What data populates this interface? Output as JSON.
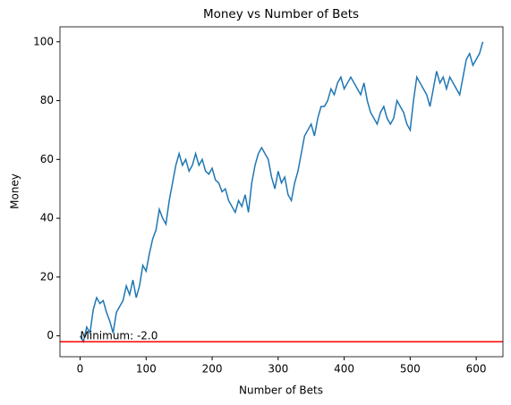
{
  "chart_data": {
    "type": "line",
    "title": "Money vs Number of Bets",
    "x_label": "Number of Bets",
    "y_label": "Money",
    "x": [
      0,
      5,
      10,
      15,
      20,
      25,
      30,
      35,
      40,
      45,
      50,
      55,
      60,
      65,
      70,
      75,
      80,
      85,
      90,
      95,
      100,
      105,
      110,
      115,
      120,
      125,
      130,
      135,
      140,
      145,
      150,
      155,
      160,
      165,
      170,
      175,
      180,
      185,
      190,
      195,
      200,
      205,
      210,
      215,
      220,
      225,
      230,
      235,
      240,
      245,
      250,
      255,
      260,
      265,
      270,
      275,
      280,
      285,
      290,
      295,
      300,
      305,
      310,
      315,
      320,
      325,
      330,
      335,
      340,
      345,
      350,
      355,
      360,
      365,
      370,
      375,
      380,
      385,
      390,
      395,
      400,
      405,
      410,
      415,
      420,
      425,
      430,
      435,
      440,
      445,
      450,
      455,
      460,
      465,
      470,
      475,
      480,
      485,
      490,
      495,
      500,
      505,
      510,
      515,
      520,
      525,
      530,
      535,
      540,
      545,
      550,
      555,
      560,
      565,
      570,
      575,
      580,
      585,
      590,
      595,
      600,
      605,
      610
    ],
    "series": [
      {
        "name": "Money",
        "color": "#1f77b4",
        "values": [
          0,
          -2,
          3,
          1,
          9,
          13,
          11,
          12,
          8,
          5,
          1,
          8,
          10,
          12,
          17,
          14,
          19,
          13,
          17,
          24,
          22,
          28,
          33,
          36,
          43,
          40,
          38,
          46,
          52,
          58,
          62,
          58,
          60,
          56,
          58,
          62,
          58,
          60,
          56,
          55,
          57,
          53,
          52,
          49,
          50,
          46,
          44,
          42,
          46,
          44,
          48,
          42,
          52,
          58,
          62,
          64,
          62,
          60,
          54,
          50,
          56,
          52,
          54,
          48,
          46,
          52,
          56,
          62,
          68,
          70,
          72,
          68,
          74,
          78,
          78,
          80,
          84,
          82,
          86,
          88,
          84,
          86,
          88,
          86,
          84,
          82,
          86,
          80,
          76,
          74,
          72,
          76,
          78,
          74,
          72,
          74,
          80,
          78,
          76,
          72,
          70,
          80,
          88,
          86,
          84,
          82,
          78,
          84,
          90,
          86,
          88,
          84,
          88,
          86,
          84,
          82,
          88,
          94,
          96,
          92,
          94,
          96,
          100
        ]
      }
    ],
    "hline": {
      "value": -2,
      "color": "red"
    },
    "annotation": {
      "text": "Minimum: -2.0",
      "x": 0,
      "y": -2
    },
    "xlim": [
      -30.5,
      640.5
    ],
    "ylim": [
      -7.1,
      105.1
    ],
    "xticks": [
      0,
      100,
      200,
      300,
      400,
      500,
      600
    ],
    "yticks": [
      0,
      20,
      40,
      60,
      80,
      100
    ]
  }
}
